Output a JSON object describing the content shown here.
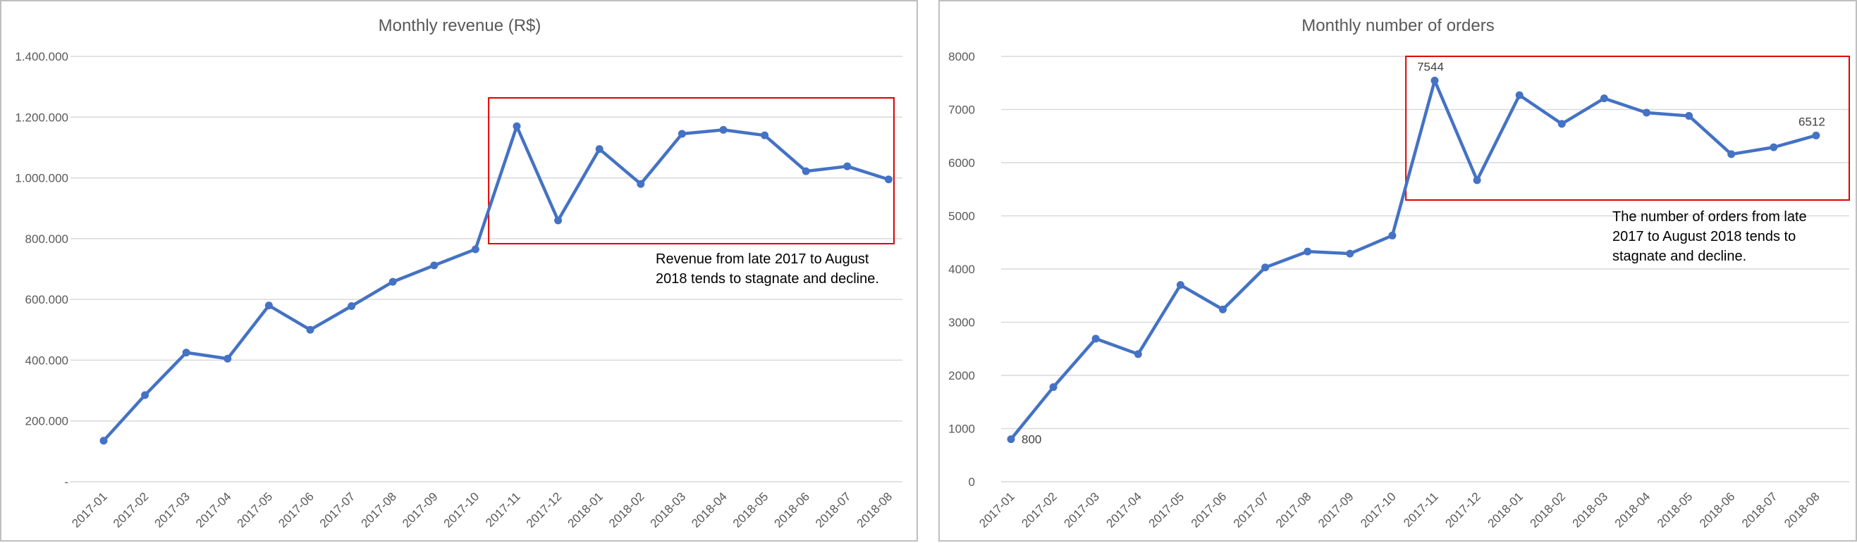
{
  "chart_data": [
    {
      "type": "line",
      "title": "Monthly revenue (R$)",
      "categories": [
        "2017-01",
        "2017-02",
        "2017-03",
        "2017-04",
        "2017-05",
        "2017-06",
        "2017-07",
        "2017-08",
        "2017-09",
        "2017-10",
        "2017-11",
        "2017-12",
        "2018-01",
        "2018-02",
        "2018-03",
        "2018-04",
        "2018-05",
        "2018-06",
        "2018-07",
        "2018-08"
      ],
      "values": [
        135000,
        285000,
        425000,
        405000,
        580000,
        500000,
        578000,
        658000,
        712000,
        765000,
        1170000,
        860000,
        1095000,
        980000,
        1145000,
        1158000,
        1140000,
        1022000,
        1038000,
        995000
      ],
      "ylim": [
        0,
        1400000
      ],
      "yticks": [
        0,
        200000,
        400000,
        600000,
        800000,
        1000000,
        1200000,
        1400000
      ],
      "ytick_labels": [
        "-",
        "200.000",
        "400.000",
        "600.000",
        "800.000",
        "1.000.000",
        "1.200.000",
        "1.400.000"
      ],
      "grid": true,
      "annotation": {
        "lines": [
          "Revenue from late 2017 to August",
          "2018 tends to stagnate and decline."
        ],
        "highlight_from": "2017-10",
        "highlight_to": "2018-08",
        "box_color": "#e00000"
      },
      "point_labels": [],
      "line_color": "#4472c4"
    },
    {
      "type": "line",
      "title": "Monthly number of orders",
      "categories": [
        "2017-01",
        "2017-02",
        "2017-03",
        "2017-04",
        "2017-05",
        "2017-06",
        "2017-07",
        "2017-08",
        "2017-09",
        "2017-10",
        "2017-11",
        "2017-12",
        "2018-01",
        "2018-02",
        "2018-03",
        "2018-04",
        "2018-05",
        "2018-06",
        "2018-07",
        "2018-08"
      ],
      "values": [
        800,
        1780,
        2690,
        2400,
        3700,
        3240,
        4030,
        4330,
        4290,
        4630,
        7544,
        5670,
        7270,
        6730,
        7210,
        6940,
        6880,
        6160,
        6290,
        6512
      ],
      "ylim": [
        0,
        8000
      ],
      "yticks": [
        0,
        1000,
        2000,
        3000,
        4000,
        5000,
        6000,
        7000,
        8000
      ],
      "ytick_labels": [
        "0",
        "1000",
        "2000",
        "3000",
        "4000",
        "5000",
        "6000",
        "7000",
        "8000"
      ],
      "grid": true,
      "annotation": {
        "lines": [
          "The number of orders from late",
          "2017 to August 2018 tends to",
          "stagnate and decline."
        ],
        "highlight_from": "2017-10",
        "highlight_to": "2018-08",
        "box_color": "#e00000"
      },
      "point_labels": [
        {
          "index": 0,
          "text": "800"
        },
        {
          "index": 10,
          "text": "7544"
        },
        {
          "index": 19,
          "text": "6512"
        }
      ],
      "line_color": "#4472c4"
    }
  ]
}
